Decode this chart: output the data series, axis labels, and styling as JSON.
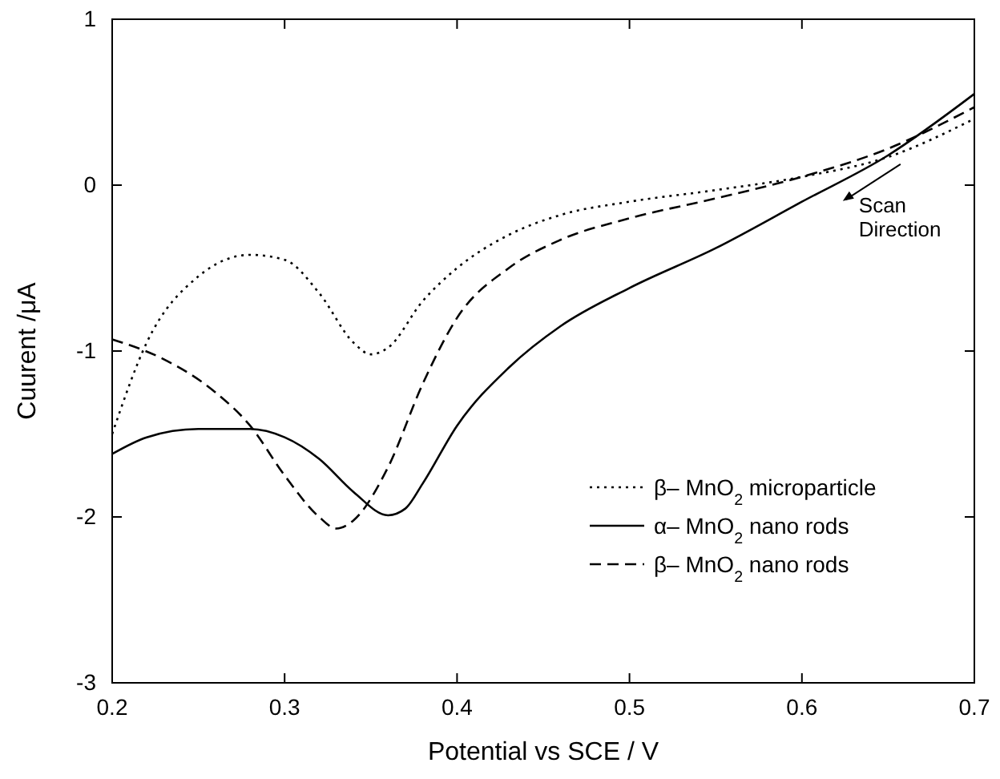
{
  "chart_data": {
    "type": "line",
    "xlabel": "Potential vs SCE / V",
    "ylabel": "Cuurent /μA",
    "xlim": [
      0.2,
      0.7
    ],
    "xticks": [
      0.2,
      0.3,
      0.4,
      0.5,
      0.6,
      0.7
    ],
    "ylim": [
      -3,
      1
    ],
    "yticks": [
      -3,
      -2,
      -1,
      0,
      1
    ],
    "grid": false,
    "legend": "bottom right",
    "marker": "none",
    "annotations": [
      "Scan Direction"
    ],
    "series": [
      {
        "name": "β– MnO$_{2}$ microparticle",
        "color": "#000000",
        "line_style": "dotted",
        "x": [
          0.2,
          0.22,
          0.25,
          0.28,
          0.3,
          0.32,
          0.34,
          0.35,
          0.36,
          0.38,
          0.4,
          0.43,
          0.46,
          0.5,
          0.55,
          0.6,
          0.65,
          0.7
        ],
        "values": [
          -1.5,
          -0.95,
          -0.55,
          -0.42,
          -0.45,
          -0.65,
          -0.95,
          -1.02,
          -0.98,
          -0.7,
          -0.5,
          -0.3,
          -0.18,
          -0.1,
          -0.03,
          0.05,
          0.17,
          0.4
        ]
      },
      {
        "name": "α– MnO$_{2}$ nano rods",
        "color": "#000000",
        "line_style": "solid",
        "x": [
          0.2,
          0.22,
          0.25,
          0.28,
          0.3,
          0.32,
          0.34,
          0.36,
          0.37,
          0.38,
          0.4,
          0.43,
          0.46,
          0.5,
          0.55,
          0.6,
          0.65,
          0.7
        ],
        "values": [
          -1.62,
          -1.52,
          -1.47,
          -1.47,
          -1.52,
          -1.65,
          -1.85,
          -1.99,
          -1.95,
          -1.8,
          -1.45,
          -1.1,
          -0.85,
          -0.62,
          -0.38,
          -0.1,
          0.18,
          0.55
        ]
      },
      {
        "name": "β– MnO$_{2}$ nano rods",
        "color": "#000000",
        "line_style": "dashed",
        "x": [
          0.2,
          0.23,
          0.26,
          0.28,
          0.3,
          0.32,
          0.33,
          0.34,
          0.36,
          0.38,
          0.4,
          0.43,
          0.46,
          0.5,
          0.55,
          0.6,
          0.65,
          0.7
        ],
        "values": [
          -0.93,
          -1.05,
          -1.25,
          -1.45,
          -1.75,
          -2.0,
          -2.07,
          -2.02,
          -1.7,
          -1.2,
          -0.8,
          -0.5,
          -0.33,
          -0.2,
          -0.08,
          0.05,
          0.22,
          0.47
        ]
      }
    ]
  }
}
